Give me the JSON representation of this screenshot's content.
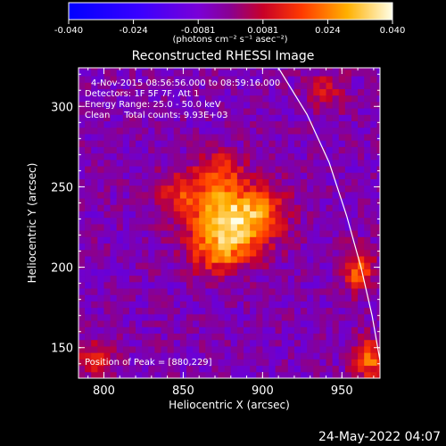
{
  "chart_data": {
    "type": "heatmap",
    "title": "Reconstructed RHESSI Image",
    "colorbar": {
      "vmin": -0.04,
      "vmax": 0.04,
      "ticks": [
        "-0.040",
        "-0.024",
        "-0.0081",
        "0.0081",
        "0.024",
        "0.040"
      ],
      "units": "(photons cm⁻² s⁻¹ asec⁻²)"
    },
    "xlabel": "Heliocentric X (arcsec)",
    "ylabel": "Heliocentric Y (arcsec)",
    "xlim": [
      784,
      974
    ],
    "ylim": [
      131,
      324
    ],
    "xticks": [
      800,
      850,
      900,
      950
    ],
    "yticks": [
      150,
      200,
      250,
      300
    ],
    "annotations": [
      "4-Nov-2015 08:56:56.000 to 08:59:16.000",
      "Detectors: 1F 5F 7F, Att 1",
      "Energy Range: 25.0 - 50.0 keV",
      "Clean     Total counts: 9.93E+03"
    ],
    "peak_label": "Position of Peak = [880,229]",
    "peak": [
      880,
      229
    ],
    "blobs": [
      {
        "x": 878,
        "y": 228,
        "sx": 17,
        "sy": 15,
        "amp": 0.042
      },
      {
        "x": 873,
        "y": 259,
        "sx": 10,
        "sy": 10,
        "amp": 0.018
      },
      {
        "x": 848,
        "y": 248,
        "sx": 10,
        "sy": 9,
        "amp": 0.016
      },
      {
        "x": 902,
        "y": 236,
        "sx": 11,
        "sy": 12,
        "amp": 0.013
      },
      {
        "x": 872,
        "y": 206,
        "sx": 12,
        "sy": 8,
        "amp": 0.013
      },
      {
        "x": 960,
        "y": 198,
        "sx": 7,
        "sy": 9,
        "amp": 0.024
      },
      {
        "x": 967,
        "y": 143,
        "sx": 7,
        "sy": 9,
        "amp": 0.026
      },
      {
        "x": 795,
        "y": 143,
        "sx": 8,
        "sy": 8,
        "amp": 0.016
      },
      {
        "x": 940,
        "y": 310,
        "sx": 9,
        "sy": 9,
        "amp": 0.012
      }
    ],
    "limb": [
      [
        910,
        324
      ],
      [
        928,
        295
      ],
      [
        942,
        265
      ],
      [
        953,
        232
      ],
      [
        962,
        200
      ],
      [
        969,
        170
      ],
      [
        974,
        142
      ]
    ]
  },
  "footer_timestamp": "24-May-2022 04:07"
}
